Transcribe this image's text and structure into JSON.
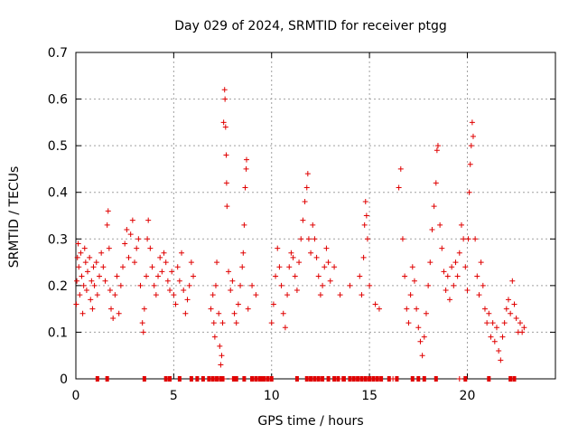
{
  "chart_data": {
    "type": "scatter",
    "title": "Day 029 of 2024, SRMTID for receiver ptgg",
    "xlabel": "GPS time / hours",
    "ylabel": "SRMTID / TECUs",
    "xlim": [
      0,
      24.5
    ],
    "ylim": [
      0,
      0.7
    ],
    "xticks": [
      0,
      5,
      10,
      15,
      20
    ],
    "xtick_labels": [
      "0",
      "5",
      "10",
      "15",
      "20"
    ],
    "yticks": [
      0,
      0.1,
      0.2,
      0.3,
      0.4,
      0.5,
      0.6,
      0.7
    ],
    "ytick_labels": [
      "0",
      "0.1",
      "0.2",
      "0.3",
      "0.4",
      "0.5",
      "0.6",
      "0.7"
    ],
    "grid": true,
    "color": "#e00000",
    "marker": "plus",
    "series": [
      {
        "name": "SRMTID",
        "points": [
          [
            0.02,
            0.16
          ],
          [
            0.05,
            0.21
          ],
          [
            0.08,
            0.26
          ],
          [
            0.12,
            0.29
          ],
          [
            0.15,
            0.24
          ],
          [
            0.2,
            0.18
          ],
          [
            0.25,
            0.27
          ],
          [
            0.3,
            0.22
          ],
          [
            0.35,
            0.14
          ],
          [
            0.4,
            0.2
          ],
          [
            0.45,
            0.28
          ],
          [
            0.5,
            0.25
          ],
          [
            0.55,
            0.19
          ],
          [
            0.6,
            0.23
          ],
          [
            0.7,
            0.26
          ],
          [
            0.75,
            0.17
          ],
          [
            0.8,
            0.21
          ],
          [
            0.85,
            0.15
          ],
          [
            0.9,
            0.24
          ],
          [
            0.95,
            0.2
          ],
          [
            1.05,
            0.25
          ],
          [
            1.1,
            0.18
          ],
          [
            1.2,
            0.22
          ],
          [
            1.3,
            0.27
          ],
          [
            1.4,
            0.24
          ],
          [
            1.5,
            0.21
          ],
          [
            1.6,
            0.33
          ],
          [
            1.65,
            0.36
          ],
          [
            1.7,
            0.28
          ],
          [
            1.75,
            0.19
          ],
          [
            1.8,
            0.15
          ],
          [
            1.9,
            0.13
          ],
          [
            2.0,
            0.18
          ],
          [
            2.1,
            0.22
          ],
          [
            2.2,
            0.14
          ],
          [
            2.3,
            0.2
          ],
          [
            2.4,
            0.24
          ],
          [
            2.5,
            0.29
          ],
          [
            2.6,
            0.32
          ],
          [
            2.7,
            0.26
          ],
          [
            2.8,
            0.31
          ],
          [
            2.9,
            0.34
          ],
          [
            3.0,
            0.25
          ],
          [
            3.1,
            0.28
          ],
          [
            3.2,
            0.3
          ],
          [
            3.3,
            0.2
          ],
          [
            3.4,
            0.12
          ],
          [
            3.45,
            0.1
          ],
          [
            3.5,
            0.15
          ],
          [
            3.6,
            0.22
          ],
          [
            3.65,
            0.3
          ],
          [
            3.7,
            0.34
          ],
          [
            3.8,
            0.28
          ],
          [
            3.9,
            0.24
          ],
          [
            4.0,
            0.2
          ],
          [
            4.1,
            0.18
          ],
          [
            4.2,
            0.22
          ],
          [
            4.3,
            0.26
          ],
          [
            4.4,
            0.23
          ],
          [
            4.5,
            0.27
          ],
          [
            4.6,
            0.25
          ],
          [
            4.7,
            0.21
          ],
          [
            4.8,
            0.19
          ],
          [
            4.9,
            0.23
          ],
          [
            5.0,
            0.18
          ],
          [
            5.1,
            0.16
          ],
          [
            5.2,
            0.24
          ],
          [
            5.3,
            0.21
          ],
          [
            5.4,
            0.27
          ],
          [
            5.5,
            0.19
          ],
          [
            5.6,
            0.14
          ],
          [
            5.7,
            0.17
          ],
          [
            5.8,
            0.2
          ],
          [
            5.9,
            0.25
          ],
          [
            6.0,
            0.22
          ],
          [
            6.9,
            0.15
          ],
          [
            7.0,
            0.18
          ],
          [
            7.05,
            0.12
          ],
          [
            7.1,
            0.09
          ],
          [
            7.15,
            0.2
          ],
          [
            7.2,
            0.25
          ],
          [
            7.3,
            0.14
          ],
          [
            7.35,
            0.07
          ],
          [
            7.4,
            0.03
          ],
          [
            7.45,
            0.05
          ],
          [
            7.5,
            0.12
          ],
          [
            7.55,
            0.55
          ],
          [
            7.6,
            0.62
          ],
          [
            7.62,
            0.6
          ],
          [
            7.65,
            0.54
          ],
          [
            7.68,
            0.48
          ],
          [
            7.7,
            0.42
          ],
          [
            7.72,
            0.37
          ],
          [
            7.8,
            0.23
          ],
          [
            7.9,
            0.19
          ],
          [
            8.0,
            0.21
          ],
          [
            8.1,
            0.14
          ],
          [
            8.2,
            0.12
          ],
          [
            8.3,
            0.16
          ],
          [
            8.4,
            0.2
          ],
          [
            8.5,
            0.24
          ],
          [
            8.55,
            0.27
          ],
          [
            8.6,
            0.33
          ],
          [
            8.65,
            0.41
          ],
          [
            8.7,
            0.45
          ],
          [
            8.72,
            0.47
          ],
          [
            8.8,
            0.15
          ],
          [
            9.0,
            0.2
          ],
          [
            9.2,
            0.18
          ],
          [
            10.0,
            0.12
          ],
          [
            10.1,
            0.16
          ],
          [
            10.2,
            0.22
          ],
          [
            10.3,
            0.28
          ],
          [
            10.4,
            0.24
          ],
          [
            10.5,
            0.2
          ],
          [
            10.6,
            0.14
          ],
          [
            10.7,
            0.11
          ],
          [
            10.8,
            0.18
          ],
          [
            10.9,
            0.24
          ],
          [
            11.0,
            0.27
          ],
          [
            11.1,
            0.26
          ],
          [
            11.2,
            0.22
          ],
          [
            11.3,
            0.19
          ],
          [
            11.4,
            0.25
          ],
          [
            11.5,
            0.3
          ],
          [
            11.6,
            0.34
          ],
          [
            11.7,
            0.38
          ],
          [
            11.8,
            0.41
          ],
          [
            11.85,
            0.44
          ],
          [
            11.9,
            0.3
          ],
          [
            12.0,
            0.27
          ],
          [
            12.1,
            0.33
          ],
          [
            12.2,
            0.3
          ],
          [
            12.3,
            0.26
          ],
          [
            12.4,
            0.22
          ],
          [
            12.5,
            0.18
          ],
          [
            12.6,
            0.2
          ],
          [
            12.7,
            0.24
          ],
          [
            12.8,
            0.28
          ],
          [
            12.9,
            0.25
          ],
          [
            13.0,
            0.21
          ],
          [
            13.2,
            0.24
          ],
          [
            13.5,
            0.18
          ],
          [
            14.0,
            0.2
          ],
          [
            14.5,
            0.22
          ],
          [
            14.6,
            0.18
          ],
          [
            14.7,
            0.26
          ],
          [
            14.75,
            0.33
          ],
          [
            14.8,
            0.38
          ],
          [
            14.85,
            0.35
          ],
          [
            14.9,
            0.3
          ],
          [
            15.0,
            0.2
          ],
          [
            15.3,
            0.16
          ],
          [
            15.5,
            0.15
          ],
          [
            16.5,
            0.41
          ],
          [
            16.6,
            0.45
          ],
          [
            16.7,
            0.3
          ],
          [
            16.8,
            0.22
          ],
          [
            16.9,
            0.15
          ],
          [
            17.0,
            0.12
          ],
          [
            17.1,
            0.18
          ],
          [
            17.2,
            0.24
          ],
          [
            17.3,
            0.21
          ],
          [
            17.4,
            0.15
          ],
          [
            17.5,
            0.11
          ],
          [
            17.6,
            0.08
          ],
          [
            17.7,
            0.05
          ],
          [
            17.8,
            0.09
          ],
          [
            17.9,
            0.14
          ],
          [
            18.0,
            0.2
          ],
          [
            18.1,
            0.25
          ],
          [
            18.2,
            0.32
          ],
          [
            18.3,
            0.37
          ],
          [
            18.4,
            0.42
          ],
          [
            18.45,
            0.49
          ],
          [
            18.5,
            0.5
          ],
          [
            18.6,
            0.33
          ],
          [
            18.7,
            0.28
          ],
          [
            18.8,
            0.23
          ],
          [
            18.9,
            0.19
          ],
          [
            19.0,
            0.22
          ],
          [
            19.1,
            0.17
          ],
          [
            19.2,
            0.24
          ],
          [
            19.3,
            0.2
          ],
          [
            19.4,
            0.25
          ],
          [
            19.5,
            0.22
          ],
          [
            19.6,
            0.27
          ],
          [
            19.7,
            0.33
          ],
          [
            19.8,
            0.3
          ],
          [
            19.9,
            0.24
          ],
          [
            20.0,
            0.19
          ],
          [
            20.05,
            0.3
          ],
          [
            20.1,
            0.4
          ],
          [
            20.15,
            0.46
          ],
          [
            20.2,
            0.5
          ],
          [
            20.25,
            0.55
          ],
          [
            20.3,
            0.52
          ],
          [
            20.4,
            0.3
          ],
          [
            20.5,
            0.22
          ],
          [
            20.6,
            0.18
          ],
          [
            20.7,
            0.25
          ],
          [
            20.8,
            0.2
          ],
          [
            20.9,
            0.15
          ],
          [
            21.0,
            0.12
          ],
          [
            21.1,
            0.14
          ],
          [
            21.2,
            0.09
          ],
          [
            21.3,
            0.12
          ],
          [
            21.4,
            0.08
          ],
          [
            21.5,
            0.11
          ],
          [
            21.6,
            0.06
          ],
          [
            21.7,
            0.04
          ],
          [
            21.8,
            0.09
          ],
          [
            21.9,
            0.12
          ],
          [
            22.0,
            0.15
          ],
          [
            22.1,
            0.17
          ],
          [
            22.2,
            0.14
          ],
          [
            22.3,
            0.21
          ],
          [
            22.4,
            0.16
          ],
          [
            22.5,
            0.13
          ],
          [
            22.6,
            0.1
          ],
          [
            22.7,
            0.12
          ],
          [
            22.8,
            0.1
          ],
          [
            22.9,
            0.11
          ],
          [
            7.55,
            0.0
          ],
          [
            8.0,
            0.0
          ],
          [
            9.5,
            0.0
          ],
          [
            13.6,
            0.0
          ],
          [
            16.2,
            0.0
          ],
          [
            19.6,
            0.0
          ]
        ]
      }
    ],
    "zero_markers": [
      1.1,
      1.6,
      3.5,
      4.6,
      4.8,
      5.3,
      5.9,
      6.2,
      6.5,
      6.8,
      7.0,
      7.2,
      7.4,
      7.5,
      8.1,
      8.2,
      8.6,
      9.0,
      9.2,
      9.4,
      9.6,
      9.8,
      10.0,
      11.3,
      11.8,
      12.0,
      12.2,
      12.4,
      12.6,
      12.9,
      13.2,
      13.4,
      13.7,
      14.0,
      14.2,
      14.4,
      14.6,
      14.8,
      15.0,
      15.2,
      15.4,
      15.6,
      16.0,
      16.4,
      17.2,
      17.5,
      17.8,
      18.4,
      19.9,
      21.1,
      22.2,
      22.4
    ]
  }
}
